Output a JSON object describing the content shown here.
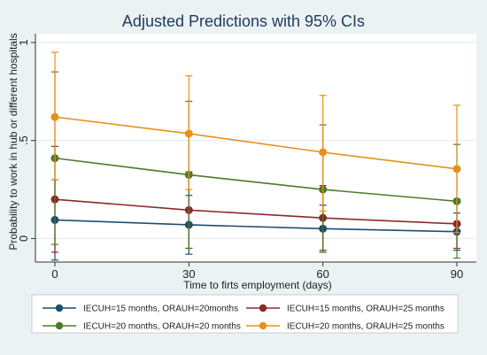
{
  "chart_data": {
    "type": "line",
    "title": "Adjusted Predictions with 95% CIs",
    "xlabel": "Time to firts employment (days)",
    "ylabel": "Probability to work in hub or different hospitals",
    "x": [
      0,
      30,
      60,
      90
    ],
    "x_ticks": [
      "0",
      "30",
      "60",
      "90"
    ],
    "y_ticks": [
      "0",
      ".5",
      "1"
    ],
    "xlim": [
      0,
      90
    ],
    "ylim": [
      -0.12,
      1.0
    ],
    "grid": "horizontal",
    "legend_position": "bottom",
    "series": [
      {
        "name": "IECUH=15 months, ORAUH=20months",
        "color": "#1b4f72",
        "values": [
          0.095,
          0.07,
          0.05,
          0.035
        ],
        "ci_low": [
          -0.11,
          -0.08,
          -0.07,
          -0.06
        ],
        "ci_high": [
          0.3,
          0.22,
          0.17,
          0.13
        ]
      },
      {
        "name": "IECUH=15 months, ORAUH=25 months",
        "color": "#8b2a2a",
        "values": [
          0.2,
          0.145,
          0.105,
          0.075
        ],
        "ci_low": [
          -0.07,
          -0.05,
          -0.06,
          -0.05
        ],
        "ci_high": [
          0.47,
          0.34,
          0.27,
          0.2
        ]
      },
      {
        "name": "IECUH=20 months, ORAUH=20 months",
        "color": "#4f7a28",
        "values": [
          0.41,
          0.325,
          0.25,
          0.19
        ],
        "ci_low": [
          -0.03,
          -0.05,
          -0.07,
          -0.1
        ],
        "ci_high": [
          0.85,
          0.7,
          0.58,
          0.48
        ]
      },
      {
        "name": "IECUH=20 months, ORAUH=25 months",
        "color": "#e8901a",
        "values": [
          0.62,
          0.535,
          0.44,
          0.355
        ],
        "ci_low": [
          0.3,
          0.25,
          0.14,
          0.03
        ],
        "ci_high": [
          0.95,
          0.83,
          0.73,
          0.68
        ]
      }
    ]
  }
}
